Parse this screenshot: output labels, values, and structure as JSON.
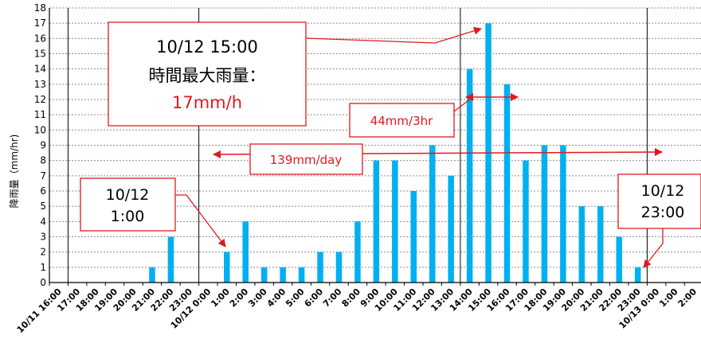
{
  "chart_data": {
    "type": "bar",
    "ylabel": "降雨量（mm/hr)",
    "ylim": [
      0,
      18
    ],
    "yticks": [
      0,
      1,
      2,
      3,
      4,
      5,
      6,
      7,
      8,
      9,
      10,
      11,
      12,
      13,
      14,
      15,
      16,
      17,
      18
    ],
    "grid": "horizontal dashed",
    "bar_color": "#00B0F0",
    "annotation_color": "#E0191F",
    "categories": [
      "10/11 16:00",
      "17:00",
      "18:00",
      "19:00",
      "20:00",
      "21:00",
      "22:00",
      "23:00",
      "10/12 0:00",
      "1:00",
      "2:00",
      "3:00",
      "4:00",
      "5:00",
      "6:00",
      "7:00",
      "8:00",
      "9:00",
      "10:00",
      "11:00",
      "12:00",
      "13:00",
      "14:00",
      "15:00",
      "16:00",
      "17:00",
      "18:00",
      "19:00",
      "20:00",
      "21:00",
      "22:00",
      "23:00",
      "10/13 0:00",
      "1:00",
      "2:00"
    ],
    "values": [
      0,
      0,
      0,
      0,
      0,
      1,
      3,
      0,
      0,
      2,
      4,
      1,
      1,
      1,
      2,
      2,
      4,
      8,
      8,
      6,
      9,
      7,
      14,
      17,
      13,
      8,
      9,
      9,
      5,
      5,
      3,
      1,
      0,
      0,
      0
    ],
    "vertical_markers_at": [
      "10/12 0:00",
      "14:00",
      "17:00",
      "10/13 0:00"
    ],
    "annotations": {
      "max_box": {
        "line1": "10/12 15:00",
        "line2": "時間最大雨量：",
        "line3": "17mm/h"
      },
      "three_hour": {
        "text": "44mm/3hr"
      },
      "daily": {
        "text": "139mm/day"
      },
      "start_box": {
        "line1": "10/12",
        "line2": "1:00"
      },
      "end_box": {
        "line1": "10/12",
        "line2": "23:00"
      }
    }
  }
}
